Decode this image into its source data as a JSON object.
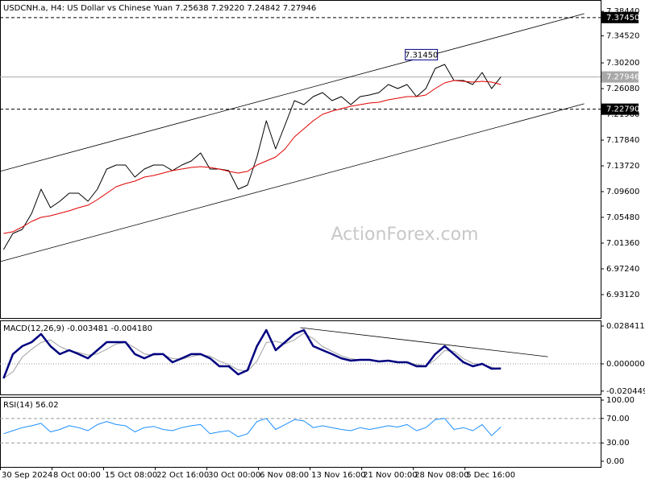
{
  "watermark": "ActionForex.com",
  "chart_data": [
    {
      "type": "line",
      "title": "USDCNH.a, H4:  US Dollar vs Chinese Yuan  7.25638 7.29220 7.24842 7.27946",
      "x": [
        3,
        11,
        19,
        27,
        35,
        43,
        51,
        59,
        67,
        75,
        83,
        91,
        99,
        107,
        115,
        123,
        131,
        139,
        147,
        155,
        163,
        171,
        179,
        187,
        195,
        203,
        211,
        219,
        227,
        235,
        243,
        251,
        259,
        267,
        275,
        283,
        291,
        299,
        307,
        315,
        323,
        331,
        339,
        347,
        355,
        363,
        371,
        379,
        387,
        395,
        403,
        411,
        419,
        427
      ],
      "xlim": [
        0,
        512
      ],
      "xticks": [
        {
          "value": 0,
          "label": "30 Sep 2024"
        },
        {
          "value": 44,
          "label": "8 Oct 00:00"
        },
        {
          "value": 88,
          "label": "15 Oct 08:00"
        },
        {
          "value": 132,
          "label": "22 Oct 16:00"
        },
        {
          "value": 176,
          "label": "30 Oct 00:00"
        },
        {
          "value": 220,
          "label": "6 Nov 08:00"
        },
        {
          "value": 264,
          "label": "13 Nov 16:00"
        },
        {
          "value": 308,
          "label": "21 Nov 00:00"
        },
        {
          "value": 352,
          "label": "28 Nov 08:00"
        },
        {
          "value": 396,
          "label": "5 Dec 16:00"
        }
      ],
      "ylim": [
        6.8938,
        7.4026
      ],
      "yticks": [
        {
          "value": 7.3844,
          "label": "7.38440"
        },
        {
          "value": 7.3452,
          "label": "7.34520"
        },
        {
          "value": 7.302,
          "label": "7.30200"
        },
        {
          "value": 7.2608,
          "label": "7.26080"
        },
        {
          "value": 7.2196,
          "label": "7.21960"
        },
        {
          "value": 7.1784,
          "label": "7.17840"
        },
        {
          "value": 7.1372,
          "label": "7.13720"
        },
        {
          "value": 7.096,
          "label": "7.09600"
        },
        {
          "value": 7.0548,
          "label": "7.05480"
        },
        {
          "value": 7.0136,
          "label": "7.01360"
        },
        {
          "value": 6.9724,
          "label": "6.97240"
        },
        {
          "value": 6.9312,
          "label": "6.93120"
        }
      ],
      "series": [
        {
          "color": "#000000",
          "width": 1,
          "values": [
            7.0033,
            7.0291,
            7.0355,
            7.0613,
            7.0999,
            7.0703,
            7.0806,
            7.0935,
            7.0935,
            7.0806,
            7.0999,
            7.1321,
            7.1386,
            7.1386,
            7.1192,
            7.1321,
            7.1386,
            7.1386,
            7.1296,
            7.1386,
            7.145,
            7.1579,
            7.1321,
            7.1321,
            7.1296,
            7.0999,
            7.1064,
            7.1514,
            7.2094,
            7.1643,
            7.203,
            7.2416,
            7.2352,
            7.248,
            7.2545,
            7.2416,
            7.248,
            7.2352,
            7.248,
            7.2506,
            7.2545,
            7.2674,
            7.2609,
            7.2674,
            7.248,
            7.2609,
            7.2931,
            7.2996,
            7.2738,
            7.2738,
            7.2674,
            7.2867,
            7.2609,
            7.27946
          ]
        },
        {
          "color": "#e00000",
          "width": 1,
          "values": [
            7.0291,
            7.0317,
            7.0394,
            7.0484,
            7.0548,
            7.0574,
            7.0613,
            7.0652,
            7.0703,
            7.0742,
            7.0832,
            7.0935,
            7.1038,
            7.1089,
            7.1128,
            7.1192,
            7.1218,
            7.1257,
            7.1296,
            7.1321,
            7.1347,
            7.136,
            7.1347,
            7.1321,
            7.1283,
            7.1257,
            7.1283,
            7.1386,
            7.145,
            7.1514,
            7.1643,
            7.1836,
            7.1965,
            7.2094,
            7.2197,
            7.2249,
            7.2287,
            7.2326,
            7.2352,
            7.2377,
            7.239,
            7.2429,
            7.2455,
            7.248,
            7.248,
            7.2506,
            7.2609,
            7.2699,
            7.2738,
            7.2725,
            7.2712,
            7.2725,
            7.2712,
            7.2674
          ]
        },
        {
          "color": "#000000",
          "width": 0.8,
          "x": [
            0,
            498
          ],
          "values": [
            7.1283,
            7.3807
          ]
        },
        {
          "color": "#000000",
          "width": 0.8,
          "x": [
            0,
            498
          ],
          "values": [
            6.984,
            7.2365
          ]
        }
      ],
      "hlines": [
        {
          "value": 7.3745,
          "label": "7.37450",
          "style": "dashed",
          "color": "#000000"
        },
        {
          "value": 7.2279,
          "label": "7.22790",
          "style": "dashed",
          "color": "#000000"
        },
        {
          "value": 7.27946,
          "style": "solid",
          "color": "#a8a8a8"
        }
      ],
      "annotations": [
        {
          "text": "7.31450",
          "x": 375,
          "y": 7.3145
        }
      ]
    },
    {
      "type": "line",
      "title": "MACD(12,26,9) -0.003481 -0.004180",
      "x": [
        3,
        11,
        19,
        27,
        35,
        43,
        51,
        59,
        67,
        75,
        83,
        91,
        99,
        107,
        115,
        123,
        131,
        139,
        147,
        155,
        163,
        171,
        179,
        187,
        195,
        203,
        211,
        219,
        227,
        235,
        243,
        251,
        259,
        267,
        275,
        283,
        291,
        299,
        307,
        315,
        323,
        331,
        339,
        347,
        355,
        363,
        371,
        379,
        387,
        395,
        403,
        411,
        419,
        427
      ],
      "xlim": [
        0,
        512
      ],
      "ylim": [
        -0.02297,
        0.03264
      ],
      "yticks": [
        0.028411,
        {
          "value": 0,
          "label": "0.000000"
        },
        -0.020449
      ],
      "series": [
        {
          "color": "#a0a0a0",
          "width": 1,
          "values": [
            -0.0109,
            -0.006,
            0.005,
            0.011,
            0.016,
            0.018,
            0.013,
            0.01,
            0.0085,
            0.0065,
            0.0075,
            0.011,
            0.015,
            0.016,
            0.012,
            0.0075,
            0.0065,
            0.007,
            0.004,
            0.0035,
            0.0055,
            0.0068,
            0.0058,
            0.002,
            -0.0005,
            -0.0045,
            -0.0055,
            0.002,
            0.016,
            0.017,
            0.015,
            0.018,
            0.023,
            0.019,
            0.013,
            0.0095,
            0.006,
            0.0038,
            0.003,
            0.003,
            0.0022,
            0.0022,
            0.0016,
            0.0013,
            -0.0005,
            -0.0015,
            0.003,
            0.01,
            0.0095,
            0.004,
            0.0005,
            -0.0005,
            -0.0025,
            -0.00418
          ]
        },
        {
          "color": "#000080",
          "width": 2.5,
          "values": [
            -0.0109,
            0.0073,
            0.0133,
            0.0163,
            0.0224,
            0.0133,
            0.0073,
            0.0103,
            0.0073,
            0.0042,
            0.0103,
            0.0163,
            0.0163,
            0.0163,
            0.0073,
            0.0042,
            0.0073,
            0.0073,
            0.0012,
            0.0042,
            0.0073,
            0.0073,
            0.0042,
            -0.0018,
            -0.0018,
            -0.0079,
            -0.0048,
            0.0133,
            0.0254,
            0.0103,
            0.0163,
            0.0224,
            0.0254,
            0.0133,
            0.0103,
            0.0073,
            0.0042,
            0.0024,
            0.003,
            0.003,
            0.0018,
            0.0024,
            0.0012,
            0.0012,
            -0.0018,
            -0.0018,
            0.0073,
            0.0133,
            0.0073,
            0.0012,
            -0.0018,
            0,
            -0.0036,
            -0.003481
          ]
        },
        {
          "color": "#000000",
          "width": 0.8,
          "x": [
            256,
            467
          ],
          "values": [
            0.0272,
            0.0054
          ]
        }
      ],
      "hlines": [
        {
          "value": 0,
          "style": "dotted"
        }
      ]
    },
    {
      "type": "line",
      "title": "RSI(14) 56.02",
      "x": [
        3,
        11,
        19,
        27,
        35,
        43,
        51,
        59,
        67,
        75,
        83,
        91,
        99,
        107,
        115,
        123,
        131,
        139,
        147,
        155,
        163,
        171,
        179,
        187,
        195,
        203,
        211,
        219,
        227,
        235,
        243,
        251,
        259,
        267,
        275,
        283,
        291,
        299,
        307,
        315,
        323,
        331,
        339,
        347,
        355,
        363,
        371,
        379,
        387,
        395,
        403,
        411,
        419,
        427
      ],
      "xlim": [
        0,
        512
      ],
      "ylim": [
        -9.2,
        105.3
      ],
      "yticks": [
        {
          "value": 100,
          "label": "100.00"
        },
        {
          "value": 70,
          "label": "70.00"
        },
        {
          "value": 30,
          "label": "30.00"
        },
        {
          "value": 0,
          "label": "0.00"
        }
      ],
      "series": [
        {
          "color": "#1e90ff",
          "width": 1,
          "values": [
            45,
            50,
            55,
            58,
            62,
            48,
            52,
            58,
            55,
            50,
            60,
            65,
            60,
            58,
            48,
            55,
            57,
            52,
            50,
            55,
            58,
            60,
            45,
            48,
            50,
            40,
            45,
            65,
            70,
            52,
            60,
            68,
            66,
            55,
            58,
            55,
            52,
            50,
            55,
            52,
            55,
            58,
            56,
            60,
            50,
            55,
            68,
            70,
            52,
            55,
            50,
            60,
            42,
            56.02
          ]
        }
      ],
      "hlines": [
        {
          "value": 70,
          "style": "dashed"
        },
        {
          "value": 30,
          "style": "dashed"
        }
      ]
    }
  ]
}
